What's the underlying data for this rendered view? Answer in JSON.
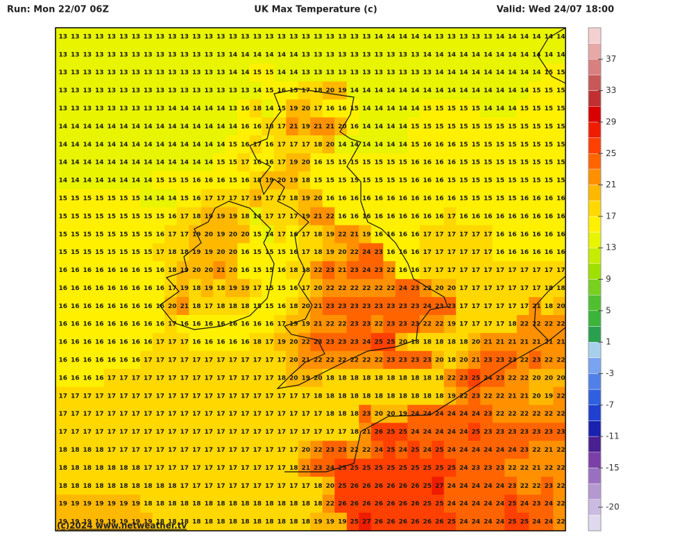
{
  "header": {
    "run": "Run: Mon 22/07 06Z",
    "title": "UK Max Temperature (c)",
    "valid": "Valid: Wed 24/07 18:00"
  },
  "credit": "(c)2024 www.netweather.tv",
  "chart_data": {
    "type": "heatmap",
    "grid": [
      [
        13,
        13,
        13,
        13,
        13,
        13,
        13,
        13,
        13,
        13,
        13,
        13,
        13,
        13,
        13,
        13,
        13,
        13,
        13,
        13,
        13,
        13,
        13,
        13,
        13,
        13,
        14,
        14,
        14,
        14,
        14,
        13,
        13,
        13,
        13,
        13,
        14,
        14,
        14,
        14,
        14,
        14
      ],
      [
        13,
        13,
        13,
        13,
        13,
        13,
        13,
        13,
        13,
        13,
        13,
        13,
        13,
        13,
        14,
        14,
        14,
        14,
        14,
        14,
        13,
        13,
        13,
        13,
        13,
        13,
        13,
        13,
        13,
        13,
        14,
        14,
        14,
        14,
        14,
        14,
        14,
        14,
        14,
        14,
        14,
        14
      ],
      [
        13,
        13,
        13,
        13,
        13,
        13,
        13,
        13,
        13,
        13,
        13,
        13,
        13,
        13,
        14,
        14,
        15,
        15,
        14,
        14,
        13,
        13,
        13,
        13,
        13,
        13,
        13,
        13,
        13,
        13,
        13,
        14,
        14,
        14,
        14,
        14,
        14,
        14,
        14,
        14,
        15,
        15
      ],
      [
        13,
        13,
        13,
        13,
        13,
        13,
        13,
        13,
        13,
        13,
        13,
        13,
        13,
        13,
        13,
        13,
        14,
        15,
        16,
        15,
        17,
        18,
        20,
        19,
        14,
        14,
        14,
        14,
        14,
        14,
        14,
        14,
        14,
        14,
        14,
        14,
        14,
        14,
        14,
        15,
        15,
        15
      ],
      [
        13,
        13,
        13,
        13,
        13,
        13,
        13,
        13,
        13,
        14,
        14,
        14,
        14,
        14,
        13,
        16,
        18,
        14,
        15,
        19,
        20,
        17,
        16,
        16,
        15,
        14,
        14,
        14,
        14,
        14,
        15,
        15,
        15,
        15,
        15,
        14,
        14,
        14,
        15,
        15,
        15,
        15
      ],
      [
        14,
        14,
        14,
        14,
        14,
        14,
        14,
        14,
        14,
        14,
        14,
        14,
        14,
        14,
        14,
        16,
        16,
        18,
        17,
        21,
        19,
        21,
        21,
        20,
        16,
        14,
        14,
        14,
        14,
        15,
        15,
        15,
        15,
        15,
        15,
        15,
        15,
        15,
        15,
        15,
        15,
        15
      ],
      [
        14,
        14,
        14,
        14,
        14,
        14,
        14,
        14,
        14,
        14,
        14,
        14,
        14,
        14,
        15,
        16,
        17,
        16,
        17,
        17,
        17,
        18,
        20,
        14,
        14,
        14,
        14,
        14,
        14,
        15,
        16,
        16,
        16,
        15,
        15,
        15,
        15,
        15,
        15,
        15,
        15,
        15
      ],
      [
        14,
        14,
        14,
        14,
        14,
        14,
        14,
        14,
        14,
        14,
        14,
        14,
        14,
        15,
        15,
        17,
        16,
        16,
        17,
        19,
        20,
        16,
        15,
        15,
        15,
        15,
        15,
        15,
        15,
        16,
        16,
        16,
        16,
        15,
        15,
        15,
        15,
        15,
        15,
        15,
        15,
        15
      ],
      [
        14,
        14,
        14,
        14,
        14,
        14,
        14,
        14,
        15,
        15,
        15,
        16,
        16,
        16,
        15,
        16,
        18,
        19,
        20,
        19,
        18,
        15,
        15,
        15,
        15,
        15,
        15,
        15,
        15,
        16,
        16,
        16,
        15,
        15,
        15,
        15,
        15,
        15,
        15,
        15,
        15,
        15
      ],
      [
        15,
        15,
        15,
        15,
        15,
        15,
        15,
        14,
        14,
        14,
        15,
        16,
        17,
        17,
        17,
        17,
        19,
        17,
        17,
        18,
        19,
        20,
        16,
        16,
        16,
        16,
        16,
        16,
        16,
        16,
        16,
        16,
        16,
        15,
        15,
        15,
        15,
        15,
        16,
        16,
        16,
        16
      ],
      [
        15,
        15,
        15,
        15,
        15,
        15,
        15,
        15,
        15,
        16,
        17,
        18,
        19,
        19,
        19,
        18,
        14,
        17,
        17,
        17,
        19,
        21,
        22,
        16,
        16,
        16,
        16,
        16,
        16,
        16,
        16,
        16,
        17,
        16,
        16,
        16,
        16,
        16,
        16,
        16,
        16,
        16
      ],
      [
        15,
        15,
        15,
        15,
        15,
        15,
        15,
        15,
        16,
        17,
        17,
        19,
        20,
        19,
        20,
        20,
        15,
        14,
        17,
        16,
        17,
        18,
        19,
        22,
        21,
        19,
        16,
        16,
        16,
        16,
        17,
        17,
        17,
        17,
        17,
        17,
        16,
        16,
        16,
        16,
        16,
        16
      ],
      [
        15,
        15,
        15,
        15,
        15,
        15,
        15,
        15,
        17,
        18,
        18,
        19,
        19,
        20,
        20,
        16,
        15,
        15,
        15,
        16,
        17,
        18,
        19,
        20,
        22,
        24,
        23,
        16,
        16,
        16,
        17,
        17,
        17,
        17,
        17,
        17,
        16,
        16,
        16,
        16,
        16,
        16
      ],
      [
        16,
        16,
        16,
        16,
        16,
        16,
        16,
        15,
        16,
        18,
        19,
        20,
        20,
        21,
        20,
        16,
        15,
        15,
        16,
        18,
        18,
        22,
        23,
        21,
        23,
        24,
        23,
        22,
        16,
        16,
        17,
        17,
        17,
        17,
        17,
        17,
        17,
        17,
        17,
        17,
        17,
        17
      ],
      [
        16,
        16,
        16,
        16,
        16,
        16,
        16,
        16,
        16,
        17,
        19,
        18,
        19,
        18,
        19,
        19,
        17,
        15,
        15,
        16,
        17,
        20,
        22,
        22,
        22,
        22,
        22,
        22,
        24,
        23,
        22,
        20,
        20,
        17,
        17,
        17,
        17,
        17,
        17,
        17,
        18,
        18
      ],
      [
        16,
        16,
        16,
        16,
        16,
        16,
        16,
        16,
        16,
        20,
        21,
        18,
        17,
        18,
        18,
        18,
        15,
        15,
        16,
        18,
        20,
        21,
        23,
        23,
        23,
        23,
        23,
        23,
        23,
        23,
        24,
        23,
        23,
        17,
        17,
        17,
        17,
        17,
        17,
        21,
        18,
        20
      ],
      [
        16,
        16,
        16,
        16,
        16,
        16,
        16,
        16,
        16,
        17,
        16,
        16,
        16,
        16,
        16,
        16,
        16,
        16,
        17,
        19,
        19,
        21,
        22,
        22,
        23,
        23,
        22,
        23,
        23,
        23,
        22,
        22,
        19,
        17,
        17,
        17,
        17,
        18,
        22,
        22,
        22,
        22
      ],
      [
        16,
        16,
        16,
        16,
        16,
        16,
        16,
        16,
        17,
        17,
        17,
        16,
        16,
        16,
        16,
        16,
        18,
        17,
        19,
        20,
        22,
        23,
        23,
        23,
        23,
        24,
        25,
        25,
        20,
        18,
        18,
        18,
        18,
        18,
        20,
        21,
        21,
        21,
        21,
        21,
        21,
        21
      ],
      [
        16,
        16,
        16,
        16,
        16,
        16,
        16,
        17,
        17,
        17,
        17,
        17,
        17,
        17,
        17,
        17,
        17,
        17,
        17,
        20,
        21,
        22,
        22,
        22,
        22,
        22,
        22,
        23,
        23,
        23,
        23,
        20,
        18,
        20,
        21,
        23,
        23,
        23,
        22,
        23,
        22,
        22
      ],
      [
        16,
        16,
        16,
        16,
        17,
        17,
        17,
        17,
        17,
        17,
        17,
        17,
        17,
        17,
        17,
        17,
        17,
        17,
        18,
        20,
        19,
        20,
        18,
        18,
        18,
        18,
        18,
        18,
        18,
        18,
        18,
        18,
        22,
        23,
        25,
        24,
        23,
        22,
        22,
        20,
        20,
        20
      ],
      [
        17,
        17,
        17,
        17,
        17,
        17,
        17,
        17,
        17,
        17,
        17,
        17,
        17,
        17,
        17,
        17,
        17,
        17,
        17,
        17,
        17,
        18,
        18,
        18,
        18,
        18,
        18,
        18,
        18,
        18,
        18,
        18,
        19,
        22,
        23,
        22,
        22,
        21,
        21,
        20,
        19,
        22
      ],
      [
        17,
        17,
        17,
        17,
        17,
        17,
        17,
        17,
        17,
        17,
        17,
        17,
        17,
        17,
        17,
        17,
        17,
        17,
        17,
        17,
        17,
        17,
        18,
        18,
        18,
        23,
        20,
        20,
        19,
        24,
        24,
        24,
        24,
        24,
        24,
        23,
        22,
        22,
        22,
        22,
        22,
        22
      ],
      [
        17,
        17,
        17,
        17,
        17,
        17,
        17,
        17,
        17,
        17,
        17,
        17,
        17,
        17,
        17,
        17,
        17,
        17,
        17,
        17,
        17,
        17,
        17,
        17,
        18,
        21,
        26,
        25,
        25,
        24,
        24,
        24,
        24,
        24,
        25,
        23,
        23,
        23,
        23,
        23,
        23,
        23
      ],
      [
        18,
        18,
        18,
        18,
        17,
        17,
        17,
        17,
        17,
        17,
        17,
        17,
        17,
        17,
        17,
        17,
        17,
        17,
        17,
        17,
        20,
        22,
        23,
        23,
        22,
        22,
        24,
        25,
        24,
        25,
        24,
        25,
        24,
        24,
        24,
        24,
        24,
        24,
        23,
        22,
        21,
        22
      ],
      [
        18,
        18,
        18,
        18,
        18,
        18,
        18,
        17,
        17,
        17,
        17,
        17,
        17,
        17,
        17,
        17,
        17,
        17,
        17,
        18,
        21,
        23,
        24,
        25,
        25,
        25,
        25,
        25,
        25,
        25,
        25,
        25,
        25,
        24,
        23,
        23,
        23,
        22,
        22,
        21,
        22,
        22
      ],
      [
        18,
        18,
        18,
        18,
        18,
        18,
        18,
        18,
        18,
        18,
        17,
        17,
        17,
        17,
        17,
        17,
        17,
        17,
        17,
        17,
        17,
        18,
        20,
        25,
        26,
        26,
        26,
        26,
        26,
        26,
        25,
        27,
        24,
        24,
        24,
        24,
        24,
        23,
        22,
        22,
        23,
        22
      ],
      [
        19,
        19,
        19,
        19,
        19,
        19,
        19,
        18,
        18,
        18,
        18,
        18,
        18,
        18,
        18,
        18,
        18,
        18,
        18,
        18,
        18,
        18,
        22,
        26,
        26,
        26,
        26,
        26,
        26,
        26,
        25,
        25,
        24,
        24,
        24,
        24,
        24,
        25,
        24,
        23,
        24,
        22
      ],
      [
        19,
        19,
        19,
        19,
        19,
        19,
        19,
        19,
        18,
        18,
        18,
        18,
        18,
        18,
        18,
        18,
        18,
        18,
        18,
        18,
        18,
        19,
        19,
        19,
        25,
        27,
        26,
        26,
        26,
        26,
        26,
        26,
        25,
        24,
        24,
        24,
        24,
        25,
        25,
        24,
        24,
        22
      ]
    ],
    "colorbar": {
      "clim": [
        -23,
        41
      ],
      "ticks": [
        37,
        33,
        29,
        25,
        21,
        17,
        13,
        9,
        5,
        1,
        -3,
        -7,
        -11,
        -15,
        -20
      ],
      "colors": [
        "#e0d8ec",
        "#cbbbe0",
        "#b498d0",
        "#9a70c0",
        "#7a40a8",
        "#4a2090",
        "#1a20b0",
        "#2040d0",
        "#3060e0",
        "#5080e8",
        "#78a4f0",
        "#a8d0ec",
        "#28a050",
        "#3cb43c",
        "#50c030",
        "#78d020",
        "#a0e000",
        "#c8ec00",
        "#e8f400",
        "#fff000",
        "#ffd800",
        "#ffb800",
        "#ff9000",
        "#ff6400",
        "#ff4000",
        "#f01c00",
        "#d80000",
        "#c03030",
        "#c85858",
        "#d88080",
        "#e8a8a8",
        "#f4d0d0"
      ]
    }
  }
}
